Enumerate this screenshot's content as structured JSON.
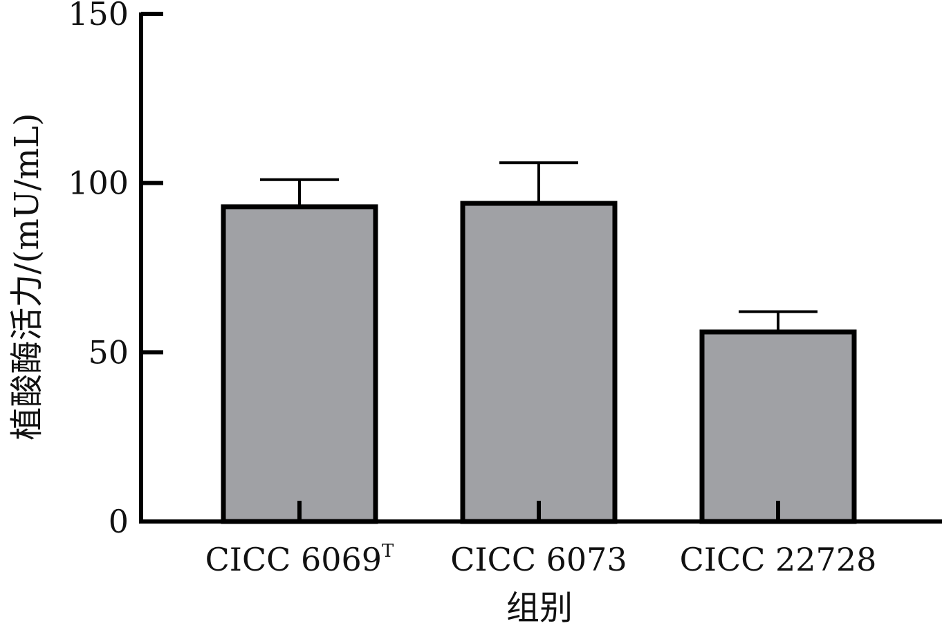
{
  "chart_data": {
    "type": "bar",
    "categories": [
      "CICC 6069",
      "CICC 6073",
      "CICC 22728"
    ],
    "category_superscripts": [
      "T",
      "",
      ""
    ],
    "values": [
      93,
      94,
      56
    ],
    "errors": [
      8,
      12,
      6
    ],
    "xlabel": "组别",
    "ylabel": "植酸酶活力/(mU/mL)",
    "ylim": [
      0,
      150
    ],
    "yticks": [
      0,
      50,
      100,
      150
    ],
    "grid": false,
    "legend": "none",
    "bar_color": "#a0a1a5",
    "edge_color": "#000000"
  }
}
